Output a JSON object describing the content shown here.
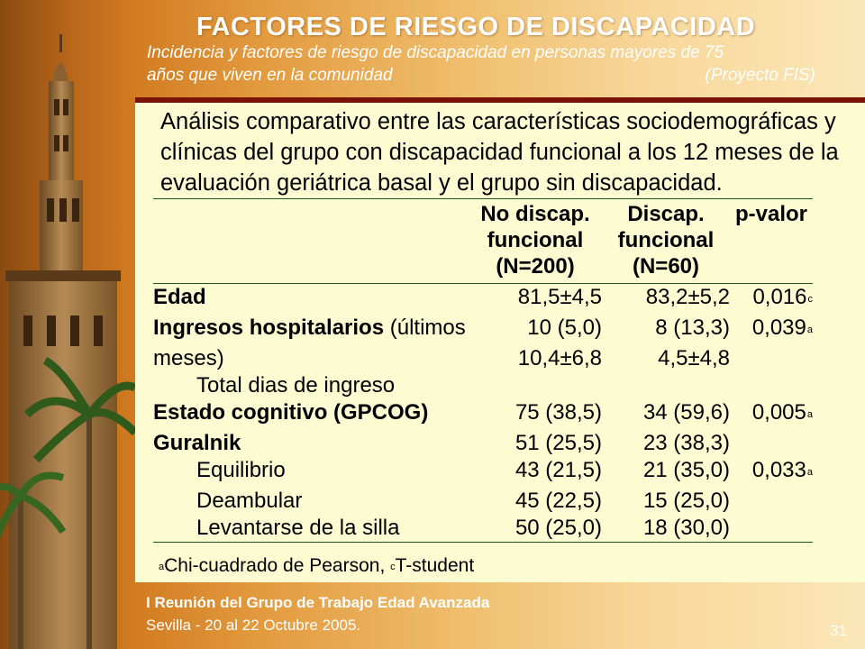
{
  "header": {
    "title": "FACTORES DE RIESGO DE DISCAPACIDAD",
    "subtitle_line1": "Incidencia y factores de riesgo de discapacidad en personas mayores de 75",
    "subtitle_line2": "años que viven en la comunidad",
    "subtitle_project": "(Proyecto FIS)"
  },
  "content": {
    "heading": "Análisis comparativo entre las características sociodemográficas y clínicas del grupo con discapacidad funcional a los 12 meses de la evaluación geriátrica basal y el grupo sin discapacidad.",
    "columns": {
      "no_discap": [
        "No discap.",
        "funcional",
        "(N=200)"
      ],
      "discap": [
        "Discap.",
        "funcional",
        "(N=60)"
      ],
      "pvalue": "p-valor"
    },
    "rows": {
      "edad": {
        "label": "Edad",
        "no": "81,5±4,5",
        "dis": "83,2±5,2",
        "p": "0,016",
        "mark": "c"
      },
      "ingresos": {
        "label_bold": "Ingresos hospitalarios",
        "label_rest": " (últimos",
        "no": "10 (5,0)",
        "dis": "8 (13,3)",
        "p": "0,039",
        "mark": "a"
      },
      "meses": {
        "label": "meses)",
        "no": "10,4±6,8",
        "dis": "4,5±4,8"
      },
      "total_dias": {
        "label": "Total dias de ingreso"
      },
      "cognitivo": {
        "label": "Estado cognitivo (GPCOG)",
        "no": "75 (38,5)",
        "dis": "34 (59,6)",
        "p": "0,005",
        "mark": "a"
      },
      "guralnik": {
        "label": "Guralnik",
        "no": "51 (25,5)",
        "dis": "23 (38,3)"
      },
      "equilibrio": {
        "label": "Equilibrio",
        "no": "43 (21,5)",
        "dis": "21 (35,0)",
        "p": "0,033",
        "mark": "a"
      },
      "deambular": {
        "label": "Deambular",
        "no": "45 (22,5)",
        "dis": "15 (25,0)"
      },
      "levantarse": {
        "label": "Levantarse de la silla",
        "no": "50 (25,0)",
        "dis": "18 (30,0)"
      }
    },
    "footnote": {
      "mark_a": "a",
      "text_a": "Chi-cuadrado de Pearson, ",
      "mark_c": "c",
      "text_c": "T-student"
    }
  },
  "footer": {
    "line1": "I Reunión del Grupo de Trabajo Edad Avanzada",
    "line2": "Sevilla - 20 al 22 Octubre 2005.",
    "page": "31"
  }
}
